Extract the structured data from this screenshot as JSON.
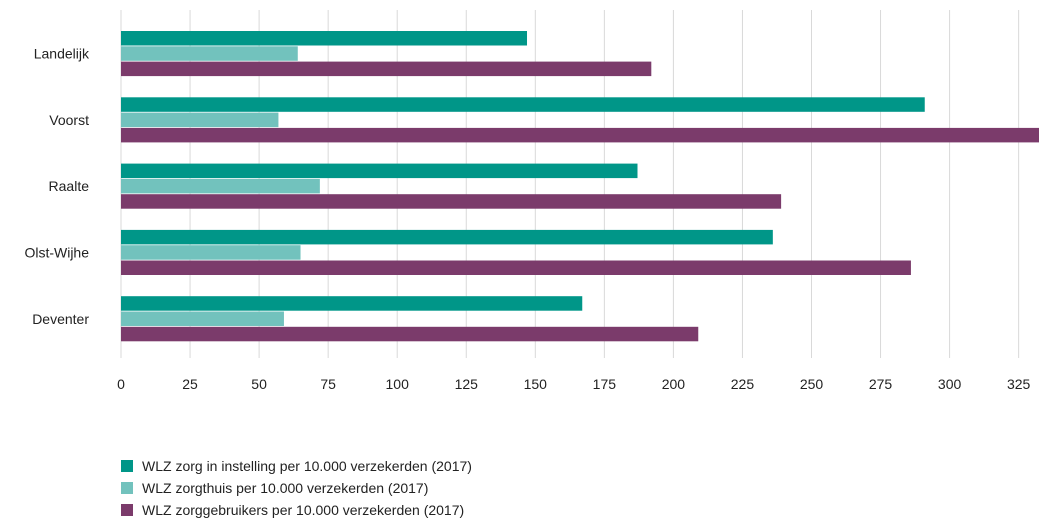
{
  "chart_data": {
    "type": "bar",
    "orientation": "horizontal",
    "categories": [
      "Landelijk",
      "Voorst",
      "Raalte",
      "Olst-Wijhe",
      "Deventer"
    ],
    "series": [
      {
        "name": "WLZ zorg in instelling per 10.000 verzekerden (2017)",
        "color": "#009688",
        "values": [
          147,
          291,
          187,
          236,
          167
        ]
      },
      {
        "name": "WLZ zorgthuis per 10.000 verzekerden (2017)",
        "color": "#72c2bd",
        "values": [
          64,
          57,
          72,
          65,
          59
        ]
      },
      {
        "name": "WLZ zorggebruikers per 10.000 verzekerden (2017)",
        "color": "#7b3b6b",
        "values": [
          192,
          333,
          239,
          286,
          209
        ]
      }
    ],
    "x_ticks": [
      "0",
      "25",
      "50",
      "75",
      "100",
      "125",
      "150",
      "175",
      "200",
      "225",
      "250",
      "275",
      "300",
      "325"
    ],
    "xlim": [
      0,
      325
    ],
    "grid": true,
    "legend_position": "bottom-left"
  }
}
